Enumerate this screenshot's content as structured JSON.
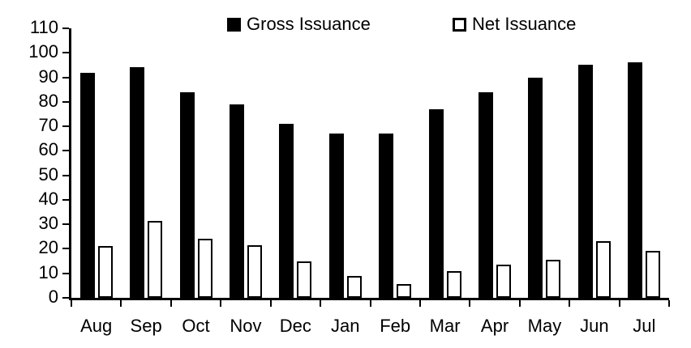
{
  "chart_data": {
    "type": "bar",
    "title": "",
    "categories": [
      "Aug",
      "Sep",
      "Oct",
      "Nov",
      "Dec",
      "Jan",
      "Feb",
      "Mar",
      "Apr",
      "May",
      "Jun",
      "Jul"
    ],
    "series": [
      {
        "name": "Gross Issuance",
        "fill": "#000000",
        "values": [
          92,
          94,
          84,
          79,
          71,
          67,
          67,
          77,
          84,
          90,
          95,
          96
        ]
      },
      {
        "name": "Net Issuance",
        "fill": "#ffffff",
        "values": [
          21,
          31.5,
          24,
          21.5,
          15,
          9,
          5.5,
          11,
          13.5,
          15.5,
          23,
          19
        ]
      }
    ],
    "xlabel": "",
    "ylabel": "",
    "ylim": [
      0,
      110
    ],
    "ytick_step": 10,
    "ytick_labels": [
      "0",
      "10",
      "20",
      "30",
      "40",
      "50",
      "60",
      "70",
      "80",
      "90",
      "100",
      "110"
    ],
    "grid": false,
    "legend_position": "top",
    "axis_color": "#000000",
    "background_color": "#ffffff"
  }
}
